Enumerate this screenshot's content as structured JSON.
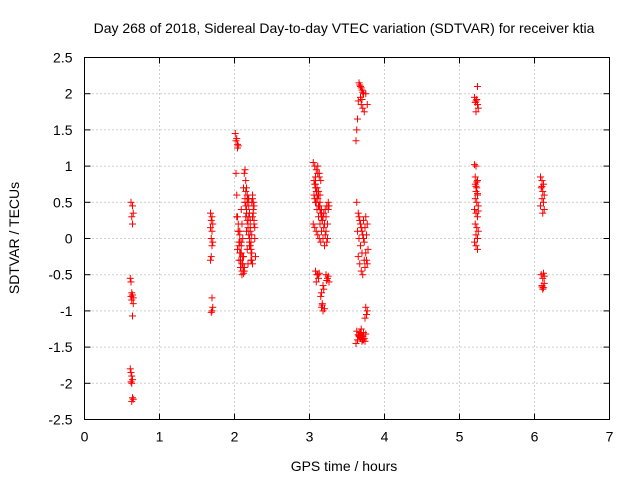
{
  "chart_data": {
    "type": "scatter",
    "title": "Day 268 of 2018, Sidereal Day-to-day VTEC variation (SDTVAR) for receiver ktia",
    "xlabel": "GPS time / hours",
    "ylabel": "SDTVAR / TECUs",
    "xlim": [
      0,
      7
    ],
    "ylim": [
      -2.5,
      2.5
    ],
    "xticks": [
      0,
      1,
      2,
      3,
      4,
      5,
      6,
      7
    ],
    "xtick_labels": [
      "0",
      "1",
      "2",
      "3",
      "4",
      "5",
      "6",
      "7"
    ],
    "yticks": [
      -2.5,
      -2,
      -1.5,
      -1,
      -0.5,
      0,
      0.5,
      1,
      1.5,
      2,
      2.5
    ],
    "ytick_labels": [
      "-2.5",
      "-2",
      "-1.5",
      "-1",
      "-0.5",
      "0",
      "0.5",
      "1",
      "1.5",
      "2",
      "2.5"
    ],
    "grid": true,
    "marker": "+",
    "color": "#ff0000",
    "series": [
      {
        "name": "SDTVAR",
        "x": [
          0.62,
          0.64,
          0.63,
          0.65,
          0.64,
          0.61,
          0.62,
          0.63,
          0.62,
          0.64,
          0.63,
          0.65,
          0.64,
          0.65,
          0.61,
          0.62,
          0.63,
          0.64,
          0.62,
          0.63,
          0.64,
          0.63,
          0.65,
          1.68,
          1.7,
          1.69,
          1.71,
          1.68,
          1.7,
          1.69,
          1.71,
          1.7,
          1.69,
          1.68,
          1.7,
          1.71,
          1.7,
          1.69,
          2.01,
          2.03,
          2.04,
          2.02,
          2.05,
          2.04,
          2.02,
          2.03,
          2.04,
          2.05,
          2.06,
          2.07,
          2.08,
          2.09,
          2.1,
          2.11,
          2.12,
          2.13,
          2.14,
          2.15,
          2.16,
          2.17,
          2.18,
          2.19,
          2.2,
          2.21,
          2.22,
          2.23,
          2.24,
          2.25,
          2.26,
          2.27,
          2.28,
          2.03,
          2.05,
          2.07,
          2.09,
          2.11,
          2.13,
          2.15,
          2.17,
          2.19,
          2.21,
          2.23,
          2.25,
          2.27,
          2.04,
          2.06,
          2.08,
          2.1,
          2.12,
          2.14,
          2.16,
          2.18,
          2.2,
          2.22,
          2.24,
          2.26,
          2.05,
          2.07,
          2.09,
          2.11,
          2.13,
          2.15,
          2.17,
          2.19,
          2.21,
          2.23,
          2.25,
          2.06,
          2.08,
          2.1,
          2.12,
          2.14,
          2.16,
          2.18,
          2.2,
          2.22,
          2.24,
          2.07,
          2.09,
          2.11,
          2.13,
          2.15,
          2.17,
          2.19,
          2.21,
          2.23,
          2.08,
          2.1,
          2.12,
          2.14,
          2.16,
          2.18,
          2.2,
          2.22,
          2.24,
          2.26,
          3.05,
          3.07,
          3.09,
          3.11,
          3.13,
          3.06,
          3.08,
          3.1,
          3.12,
          3.14,
          3.07,
          3.09,
          3.11,
          3.13,
          3.15,
          3.08,
          3.1,
          3.12,
          3.14,
          3.16,
          3.05,
          3.07,
          3.09,
          3.11,
          3.13,
          3.15,
          3.17,
          3.19,
          3.21,
          3.23,
          3.25,
          3.06,
          3.08,
          3.1,
          3.12,
          3.14,
          3.16,
          3.18,
          3.2,
          3.22,
          3.24,
          3.26,
          3.07,
          3.09,
          3.11,
          3.13,
          3.15,
          3.17,
          3.19,
          3.21,
          3.23,
          3.25,
          3.08,
          3.1,
          3.12,
          3.14,
          3.16,
          3.18,
          3.2,
          3.22,
          3.24,
          3.08,
          3.1,
          3.12,
          3.09,
          3.11,
          3.13,
          3.15,
          3.17,
          3.16,
          3.18,
          3.2,
          3.17,
          3.19,
          3.16,
          3.18,
          3.22,
          3.24,
          3.26,
          3.23,
          3.25,
          3.62,
          3.63,
          3.64,
          3.65,
          3.66,
          3.68,
          3.7,
          3.72,
          3.67,
          3.69,
          3.71,
          3.68,
          3.7,
          3.69,
          3.71,
          3.73,
          3.75,
          3.77,
          3.63,
          3.65,
          3.67,
          3.69,
          3.71,
          3.73,
          3.75,
          3.77,
          3.64,
          3.66,
          3.68,
          3.7,
          3.72,
          3.74,
          3.76,
          3.78,
          3.65,
          3.67,
          3.69,
          3.71,
          3.73,
          3.75,
          3.77,
          3.66,
          3.68,
          3.7,
          3.72,
          3.74,
          3.76,
          3.67,
          3.69,
          3.71,
          3.73,
          3.75,
          3.68,
          3.7,
          3.72,
          3.74,
          3.62,
          3.64,
          3.66,
          3.68,
          3.7,
          3.72,
          3.63,
          3.65,
          3.67,
          3.69,
          3.71,
          3.66,
          3.68,
          3.7,
          3.74,
          3.76,
          3.75,
          3.77,
          5.2,
          5.22,
          5.24,
          5.21,
          5.23,
          5.25,
          5.22,
          5.24,
          5.2,
          5.22,
          5.24,
          5.21,
          5.23,
          5.22,
          5.24,
          5.21,
          5.23,
          5.25,
          5.2,
          5.22,
          5.24,
          5.21,
          5.23,
          5.25,
          5.22,
          5.24,
          5.2,
          5.22,
          5.24,
          5.21,
          5.23,
          5.22,
          5.24,
          5.25,
          6.08,
          6.1,
          6.12,
          6.09,
          6.11,
          6.13,
          6.1,
          6.12,
          6.08,
          6.11,
          6.13,
          6.1,
          6.09,
          6.11,
          6.13,
          6.1,
          6.12,
          6.11,
          6.13,
          6.1,
          6.12
        ],
        "y": [
          0.5,
          0.45,
          0.3,
          0.35,
          0.2,
          -0.55,
          -0.6,
          -0.75,
          -0.8,
          -0.78,
          -0.85,
          -0.9,
          -1.07,
          -0.82,
          -1.8,
          -1.85,
          -1.9,
          -1.95,
          -1.98,
          -2.0,
          -2.2,
          -2.25,
          -2.22,
          0.35,
          0.3,
          0.25,
          0.2,
          0.15,
          0.1,
          0.0,
          -0.05,
          -0.1,
          -0.25,
          -0.3,
          -0.82,
          -0.95,
          -1.0,
          -1.02,
          1.45,
          1.38,
          1.3,
          1.35,
          1.28,
          1.25,
          0.9,
          0.6,
          0.3,
          0.1,
          -0.1,
          -0.2,
          -0.3,
          0.4,
          0.2,
          0.0,
          -0.25,
          -0.4,
          0.5,
          0.3,
          0.1,
          -0.15,
          -0.35,
          0.55,
          0.35,
          0.15,
          -0.05,
          -0.2,
          0.6,
          0.4,
          0.2,
          0.0,
          -0.25,
          0.3,
          0.1,
          -0.05,
          -0.2,
          -0.35,
          -0.45,
          0.45,
          0.25,
          0.05,
          -0.1,
          -0.3,
          0.5,
          0.15,
          -0.15,
          -0.3,
          -0.4,
          -0.5,
          0.7,
          0.5,
          0.35,
          0.15,
          -0.05,
          -0.2,
          -0.35,
          0.45,
          0.2,
          0.05,
          -0.1,
          -0.25,
          -0.4,
          0.8,
          0.6,
          0.45,
          0.25,
          0.05,
          0.35,
          -0.05,
          -0.2,
          -0.35,
          -0.45,
          0.55,
          0.4,
          0.2,
          0.0,
          -0.15,
          0.3,
          0.1,
          -0.05,
          -0.25,
          0.9,
          0.65,
          0.5,
          0.3,
          0.1,
          0.5,
          -0.3,
          -0.45,
          -0.48,
          0.95,
          0.7,
          0.55,
          -0.1,
          -0.3,
          0.55,
          0.25,
          1.05,
          1.0,
          0.95,
          0.9,
          0.85,
          0.8,
          0.75,
          0.7,
          0.65,
          0.6,
          0.55,
          0.5,
          1.0,
          0.9,
          0.8,
          0.7,
          0.6,
          0.45,
          0.4,
          0.3,
          0.2,
          0.15,
          0.1,
          0.05,
          0.0,
          -0.05,
          0.25,
          0.35,
          0.4,
          0.45,
          0.5,
          0.6,
          0.5,
          0.4,
          0.3,
          0.2,
          0.1,
          0.0,
          -0.1,
          0.3,
          0.2,
          0.45,
          0.75,
          0.65,
          0.55,
          0.45,
          0.35,
          0.25,
          0.15,
          0.05,
          -0.05,
          0.4,
          0.85,
          0.7,
          0.6,
          0.5,
          0.4,
          0.3,
          0.2,
          0.1,
          0.0,
          -0.45,
          -0.5,
          -0.55,
          -0.6,
          -0.5,
          -0.48,
          -0.8,
          -0.9,
          -0.95,
          -1.0,
          -0.97,
          -0.92,
          -0.7,
          -0.75,
          -0.65,
          -0.5,
          -0.55,
          -0.6,
          -0.58,
          -0.52,
          1.35,
          1.5,
          1.65,
          1.9,
          2.15,
          2.1,
          2.05,
          2.0,
          2.12,
          2.08,
          2.02,
          1.95,
          1.92,
          1.85,
          1.8,
          1.75,
          2.0,
          1.85,
          0.5,
          0.35,
          0.25,
          0.15,
          0.05,
          -0.05,
          0.3,
          0.2,
          0.1,
          0.0,
          -0.1,
          -0.2,
          0.25,
          0.15,
          0.05,
          -0.15,
          -0.25,
          -0.35,
          -0.45,
          -0.5,
          -0.3,
          -0.2,
          -0.35,
          0.3,
          0.2,
          0.1,
          0.0,
          -0.4,
          -0.3,
          -1.3,
          -1.35,
          -1.4,
          -1.38,
          -1.32,
          -1.3,
          -1.35,
          -1.4,
          -1.42,
          -1.45,
          -1.4,
          -1.35,
          -1.38,
          -1.42,
          -1.3,
          -1.28,
          -1.33,
          -1.36,
          -1.25,
          -1.35,
          -1.34,
          -1.36,
          -1.38,
          -1.1,
          -1.05,
          -0.95,
          -1.0,
          1.95,
          1.9,
          1.85,
          1.88,
          1.92,
          1.8,
          1.75,
          2.1,
          1.02,
          1.0,
          0.8,
          0.75,
          0.7,
          0.65,
          0.6,
          0.55,
          0.5,
          0.45,
          0.4,
          0.35,
          0.3,
          0.2,
          0.15,
          0.1,
          0.05,
          0.0,
          -0.05,
          -0.1,
          -0.15,
          0.85,
          0.78,
          0.72,
          0.62,
          0.38,
          0.85,
          0.8,
          0.75,
          0.7,
          0.65,
          0.6,
          0.55,
          0.5,
          0.45,
          0.35,
          0.4,
          0.72,
          -0.5,
          -0.55,
          -0.52,
          -0.65,
          -0.68,
          -0.7,
          -0.62,
          -0.67,
          -0.48
        ]
      }
    ]
  }
}
